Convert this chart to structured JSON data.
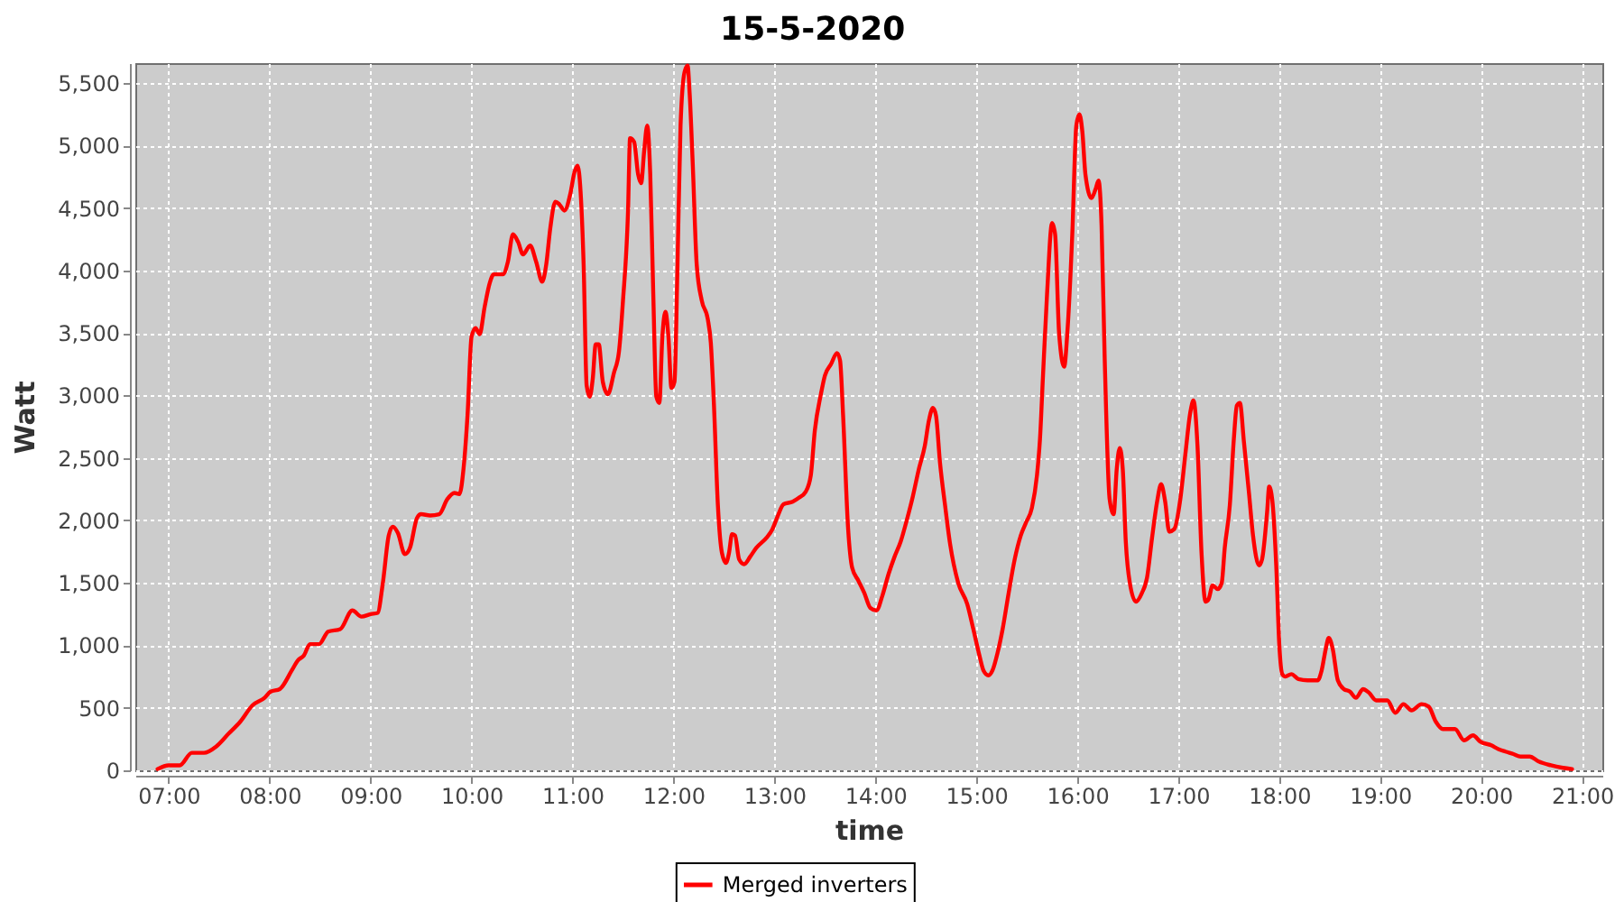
{
  "chart_data": {
    "type": "line",
    "title": "15-5-2020",
    "xlabel": "time",
    "ylabel": "Watt",
    "x": [
      6.89,
      7.0,
      7.11,
      7.23,
      7.35,
      7.47,
      7.59,
      7.71,
      7.83,
      7.95,
      8.01,
      8.1,
      8.22,
      8.28,
      8.34,
      8.4,
      8.49,
      8.58,
      8.7,
      8.82,
      8.91,
      9.0,
      9.07,
      9.12,
      9.18,
      9.22,
      9.27,
      9.34,
      9.39,
      9.46,
      9.5,
      9.59,
      9.68,
      9.76,
      9.83,
      9.88,
      9.92,
      9.96,
      10.0,
      10.04,
      10.08,
      10.13,
      10.18,
      10.22,
      10.31,
      10.36,
      10.41,
      10.46,
      10.51,
      10.58,
      10.64,
      10.7,
      10.74,
      10.78,
      10.83,
      10.87,
      10.92,
      10.98,
      11.02,
      11.05,
      11.08,
      11.11,
      11.14,
      11.17,
      11.2,
      11.23,
      11.26,
      11.3,
      11.35,
      11.41,
      11.46,
      11.5,
      11.55,
      11.57,
      11.61,
      11.65,
      11.68,
      11.71,
      11.74,
      11.77,
      11.8,
      11.83,
      11.86,
      11.89,
      11.92,
      11.95,
      11.98,
      12.01,
      12.04,
      12.07,
      12.11,
      12.14,
      12.16,
      12.19,
      12.23,
      12.28,
      12.34,
      12.37,
      12.4,
      12.44,
      12.48,
      12.52,
      12.55,
      12.58,
      12.61,
      12.65,
      12.7,
      12.76,
      12.82,
      12.92,
      12.98,
      13.03,
      13.09,
      13.18,
      13.24,
      13.31,
      13.36,
      13.4,
      13.46,
      13.5,
      13.56,
      13.62,
      13.65,
      13.68,
      13.73,
      13.77,
      13.83,
      13.89,
      13.95,
      14.01,
      14.07,
      14.13,
      14.19,
      14.25,
      14.31,
      14.37,
      14.43,
      14.49,
      14.53,
      14.57,
      14.6,
      14.64,
      14.69,
      14.74,
      14.82,
      14.91,
      14.97,
      15.03,
      15.07,
      15.12,
      15.16,
      15.21,
      15.26,
      15.32,
      15.38,
      15.44,
      15.49,
      15.55,
      15.6,
      15.63,
      15.66,
      15.7,
      15.75,
      15.78,
      15.82,
      15.87,
      15.9,
      15.95,
      15.99,
      16.02,
      16.05,
      16.08,
      16.14,
      16.18,
      16.21,
      16.24,
      16.27,
      16.32,
      16.36,
      16.39,
      16.42,
      16.45,
      16.48,
      16.52,
      16.58,
      16.64,
      16.69,
      16.74,
      16.79,
      16.83,
      16.87,
      16.91,
      16.96,
      17.02,
      17.07,
      17.12,
      17.15,
      17.19,
      17.23,
      17.27,
      17.3,
      17.34,
      17.39,
      17.43,
      17.46,
      17.51,
      17.55,
      17.58,
      17.61,
      17.65,
      17.7,
      17.74,
      17.8,
      17.83,
      17.88,
      17.9,
      17.93,
      17.97,
      18.0,
      18.03,
      18.06,
      18.12,
      18.19,
      18.28,
      18.38,
      18.42,
      18.46,
      18.49,
      18.53,
      18.58,
      18.64,
      18.7,
      18.76,
      18.83,
      18.89,
      18.96,
      19.07,
      19.15,
      19.23,
      19.31,
      19.41,
      19.48,
      19.55,
      19.62,
      19.74,
      19.83,
      19.92,
      19.99,
      20.1,
      20.17,
      20.24,
      20.32,
      20.39,
      20.48,
      20.57,
      20.69,
      20.81,
      20.9
    ],
    "series": [
      {
        "name": "Merged inverters",
        "color": "#ff0000",
        "values": [
          10,
          40,
          40,
          140,
          140,
          190,
          290,
          390,
          520,
          580,
          630,
          650,
          800,
          880,
          920,
          1010,
          1010,
          1110,
          1130,
          1280,
          1230,
          1250,
          1260,
          1490,
          1880,
          1950,
          1900,
          1730,
          1780,
          2020,
          2050,
          2040,
          2050,
          2170,
          2220,
          2210,
          2410,
          2840,
          3470,
          3540,
          3490,
          3710,
          3900,
          3970,
          3970,
          4070,
          4290,
          4230,
          4130,
          4200,
          4070,
          3910,
          4050,
          4340,
          4550,
          4530,
          4480,
          4620,
          4790,
          4840,
          4630,
          4050,
          3080,
          2990,
          3130,
          3410,
          3410,
          3110,
          3010,
          3180,
          3350,
          3760,
          4480,
          5060,
          5030,
          4770,
          4700,
          4960,
          5160,
          4770,
          3810,
          2990,
          2940,
          3470,
          3670,
          3470,
          3060,
          3110,
          4050,
          5160,
          5590,
          5640,
          5420,
          4870,
          4050,
          3760,
          3610,
          3420,
          2940,
          2120,
          1740,
          1660,
          1740,
          1890,
          1880,
          1690,
          1650,
          1710,
          1780,
          1860,
          1930,
          2030,
          2130,
          2150,
          2180,
          2230,
          2360,
          2720,
          3010,
          3160,
          3250,
          3340,
          3280,
          2840,
          1930,
          1620,
          1520,
          1420,
          1300,
          1280,
          1400,
          1570,
          1710,
          1830,
          2000,
          2190,
          2410,
          2600,
          2800,
          2900,
          2840,
          2460,
          2120,
          1810,
          1500,
          1330,
          1130,
          920,
          800,
          760,
          800,
          940,
          1130,
          1420,
          1690,
          1880,
          1980,
          2100,
          2360,
          2650,
          3160,
          3810,
          4380,
          4290,
          3490,
          3230,
          3490,
          4290,
          5160,
          5250,
          5110,
          4770,
          4580,
          4650,
          4720,
          4360,
          3330,
          2170,
          2050,
          2410,
          2580,
          2410,
          1830,
          1500,
          1350,
          1420,
          1540,
          1860,
          2150,
          2290,
          2150,
          1910,
          1930,
          2170,
          2530,
          2870,
          2960,
          2600,
          1740,
          1350,
          1370,
          1480,
          1450,
          1500,
          1780,
          2120,
          2650,
          2920,
          2940,
          2630,
          2220,
          1880,
          1640,
          1690,
          2070,
          2270,
          2170,
          1640,
          1010,
          770,
          750,
          770,
          730,
          720,
          720,
          800,
          970,
          1060,
          970,
          720,
          650,
          630,
          580,
          650,
          620,
          560,
          560,
          460,
          530,
          480,
          530,
          510,
          390,
          330,
          330,
          240,
          280,
          230,
          200,
          170,
          150,
          130,
          110,
          110,
          70,
          40,
          20,
          10
        ]
      }
    ],
    "xlim": [
      6.67,
      21.2
    ],
    "xticks": [
      {
        "value": 7,
        "label": "07:00"
      },
      {
        "value": 8,
        "label": "08:00"
      },
      {
        "value": 9,
        "label": "09:00"
      },
      {
        "value": 10,
        "label": "10:00"
      },
      {
        "value": 11,
        "label": "11:00"
      },
      {
        "value": 12,
        "label": "12:00"
      },
      {
        "value": 13,
        "label": "13:00"
      },
      {
        "value": 14,
        "label": "14:00"
      },
      {
        "value": 15,
        "label": "15:00"
      },
      {
        "value": 16,
        "label": "16:00"
      },
      {
        "value": 17,
        "label": "17:00"
      },
      {
        "value": 18,
        "label": "18:00"
      },
      {
        "value": 19,
        "label": "19:00"
      },
      {
        "value": 20,
        "label": "20:00"
      },
      {
        "value": 21,
        "label": "21:00"
      }
    ],
    "ylim": [
      0,
      5660
    ],
    "yticks": [
      0,
      500,
      {
        "value": 1000,
        "label": "1,000"
      },
      {
        "value": 1500,
        "label": "1,500"
      },
      {
        "value": 2000,
        "label": "2,000"
      },
      {
        "value": 2500,
        "label": "2,500"
      },
      {
        "value": 3000,
        "label": "3,000"
      },
      {
        "value": 3500,
        "label": "3,500"
      },
      {
        "value": 4000,
        "label": "4,000"
      },
      {
        "value": 4500,
        "label": "4,500"
      },
      {
        "value": 5000,
        "label": "5,000"
      },
      {
        "value": 5500,
        "label": "5,500"
      }
    ],
    "grid": true,
    "legend": "bottom",
    "line_style": "solid"
  }
}
